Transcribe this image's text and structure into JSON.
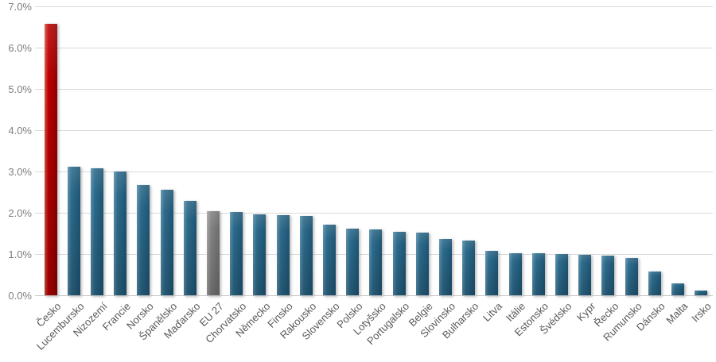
{
  "chart_data": {
    "type": "bar",
    "title": "",
    "xlabel": "",
    "ylabel": "",
    "grid": true,
    "legend": false,
    "ylim": [
      0,
      7
    ],
    "yticks": [
      "0.0%",
      "1.0%",
      "2.0%",
      "3.0%",
      "4.0%",
      "5.0%",
      "6.0%",
      "7.0%"
    ],
    "categories": [
      "Česko",
      "Lucembursko",
      "Nizozemí",
      "Francie",
      "Norsko",
      "Španělsko",
      "Maďarsko",
      "EU 27",
      "Chorvatsko",
      "Německo",
      "Finsko",
      "Rakousko",
      "Slovensko",
      "Polsko",
      "Lotyšsko",
      "Portugalsko",
      "Belgie",
      "Slovinsko",
      "Bulharsko",
      "Litva",
      "Itálie",
      "Estonsko",
      "Švédsko",
      "Kypr",
      "Řecko",
      "Rumunsko",
      "Dánsko",
      "Malta",
      "Irsko"
    ],
    "values": [
      6.6,
      3.14,
      3.1,
      3.02,
      2.69,
      2.57,
      2.31,
      2.05,
      2.03,
      1.99,
      1.96,
      1.95,
      1.73,
      1.63,
      1.61,
      1.56,
      1.54,
      1.39,
      1.35,
      1.1,
      1.04,
      1.03,
      1.02,
      1.0,
      0.98,
      0.92,
      0.59,
      0.3,
      0.14
    ],
    "color_keys": [
      "highlight",
      "default",
      "default",
      "default",
      "default",
      "default",
      "default",
      "eu27",
      "default",
      "default",
      "default",
      "default",
      "default",
      "default",
      "default",
      "default",
      "default",
      "default",
      "default",
      "default",
      "default",
      "default",
      "default",
      "default",
      "default",
      "default",
      "default",
      "default",
      "default"
    ],
    "colors": {
      "highlight": {
        "light": "#d75a47",
        "mid": "#c00000",
        "dark": "#8f0000"
      },
      "default": {
        "light": "#5a8fa9",
        "mid": "#2d6b8c",
        "dark": "#1e5574"
      },
      "eu27": {
        "light": "#a8a8a8",
        "mid": "#848484",
        "dark": "#6d6d6d"
      }
    },
    "gridline_color": "#d9d9d9",
    "axis_line_color": "#c3c3c3",
    "y_tick_color": "#7f7f7f",
    "x_tick_color": "#595959"
  }
}
